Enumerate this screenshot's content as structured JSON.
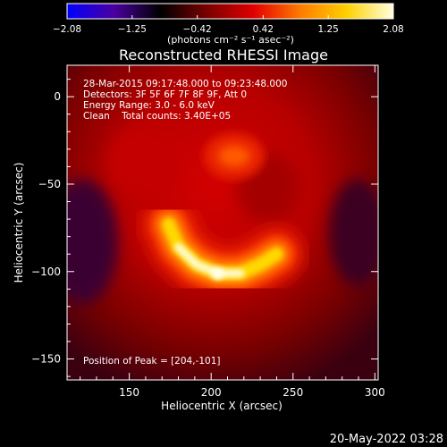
{
  "chart_data": {
    "type": "heatmap",
    "title": "Reconstructed RHESSI Image",
    "xlabel": "Heliocentric X (arcsec)",
    "ylabel": "Heliocentric Y (arcsec)",
    "xlim": [
      112,
      302
    ],
    "ylim": [
      -162,
      18
    ],
    "x_ticks": [
      "150",
      "200",
      "250",
      "300"
    ],
    "x_tick_values": [
      150,
      200,
      250,
      300
    ],
    "y_ticks": [
      "0",
      "−50",
      "−100",
      "−150"
    ],
    "y_tick_values": [
      0,
      -50,
      -100,
      -150
    ],
    "colorbar": {
      "ticks": [
        "−2.08",
        "−1.25",
        "−0.42",
        "0.42",
        "1.25",
        "2.08"
      ],
      "tick_values": [
        -2.08,
        -1.25,
        -0.42,
        0.42,
        1.25,
        2.08
      ],
      "range": [
        -2.08,
        2.08
      ],
      "unit_label": "(photons cm⁻² s⁻¹ asec⁻²)",
      "colors": [
        "#0000ff",
        "#4b00a0",
        "#000000",
        "#7a0000",
        "#e00000",
        "#ff7a00",
        "#ffd000",
        "#ffffe0"
      ]
    },
    "annotations": {
      "time": "28-Mar-2015 09:17:48.000 to 09:23:48.000",
      "detectors": "Detectors: 3F 5F 6F 7F 8F 9F, Att 0",
      "energy": "Energy Range: 3.0 - 6.0 keV",
      "clean": "Clean    Total counts: 3.40E+05",
      "peak": "Position of Peak = [204,-101]"
    },
    "peak_position": [
      204,
      -101
    ],
    "sources": [
      {
        "name": "arc",
        "path": [
          [
            174,
            -73
          ],
          [
            180,
            -86
          ],
          [
            191,
            -96
          ],
          [
            204,
            -101
          ],
          [
            218,
            -101
          ],
          [
            230,
            -96
          ],
          [
            240,
            -90
          ]
        ],
        "intensity": 2.08
      },
      {
        "name": "upper blob",
        "center": [
          214,
          -34
        ],
        "intensity": 0.75
      }
    ],
    "footer_date": "20-May-2022 03:28"
  }
}
